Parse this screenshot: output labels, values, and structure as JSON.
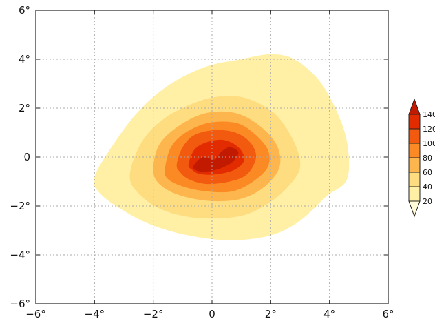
{
  "chart_data": {
    "type": "heatmap",
    "title": "",
    "xlabel": "",
    "ylabel": "",
    "xlim": [
      -6,
      6
    ],
    "ylim": [
      -6,
      6
    ],
    "x_ticks": [
      -6,
      -4,
      -2,
      0,
      2,
      4,
      6
    ],
    "y_ticks": [
      -6,
      -4,
      -2,
      0,
      2,
      4,
      6
    ],
    "x_tick_labels": [
      "−6°",
      "−4°",
      "−2°",
      "0",
      "2°",
      "4°",
      "6°"
    ],
    "y_tick_labels": [
      "−6°",
      "−4°",
      "−2°",
      "0",
      "2°",
      "4°",
      "6°"
    ],
    "grid": true,
    "contour_levels": [
      20,
      40,
      60,
      80,
      100,
      120,
      140
    ],
    "colorbar": {
      "placement": "right",
      "labels": [
        "140",
        "120",
        "100",
        "80",
        "60",
        "40",
        "20"
      ],
      "colors": [
        "#fffbd6",
        "#fff0a6",
        "#fedc80",
        "#fdb64d",
        "#fb8a24",
        "#f25a10",
        "#e32b00",
        "#c21a00"
      ]
    },
    "field": {
      "center": [
        0.2,
        0.0
      ],
      "peak_value": 145
    },
    "contours": [
      {
        "level": 20,
        "color": "#fff0a6",
        "polygon": [
          [
            -4.0,
            -0.8
          ],
          [
            -3.2,
            0.8
          ],
          [
            -2.4,
            2.0
          ],
          [
            -1.4,
            3.0
          ],
          [
            -0.2,
            3.7
          ],
          [
            1.0,
            4.0
          ],
          [
            2.0,
            4.2
          ],
          [
            2.8,
            4.0
          ],
          [
            3.6,
            3.2
          ],
          [
            4.2,
            2.0
          ],
          [
            4.6,
            0.6
          ],
          [
            4.6,
            -0.9
          ],
          [
            3.9,
            -1.6
          ],
          [
            3.0,
            -2.6
          ],
          [
            2.0,
            -3.2
          ],
          [
            0.6,
            -3.4
          ],
          [
            -0.8,
            -3.2
          ],
          [
            -2.0,
            -2.8
          ],
          [
            -3.0,
            -2.2
          ],
          [
            -3.8,
            -1.5
          ]
        ]
      },
      {
        "level": 40,
        "color": "#fedc80",
        "polygon": [
          [
            -2.8,
            -0.8
          ],
          [
            -2.4,
            0.6
          ],
          [
            -1.6,
            1.6
          ],
          [
            -0.4,
            2.3
          ],
          [
            0.6,
            2.5
          ],
          [
            1.4,
            2.3
          ],
          [
            2.2,
            1.7
          ],
          [
            2.8,
            0.6
          ],
          [
            3.0,
            -0.4
          ],
          [
            2.6,
            -1.2
          ],
          [
            1.9,
            -1.9
          ],
          [
            1.0,
            -2.4
          ],
          [
            -0.4,
            -2.5
          ],
          [
            -1.6,
            -2.2
          ],
          [
            -2.4,
            -1.6
          ]
        ]
      },
      {
        "level": 60,
        "color": "#fdb64d",
        "polygon": [
          [
            -2.0,
            -0.6
          ],
          [
            -1.8,
            0.5
          ],
          [
            -1.1,
            1.3
          ],
          [
            -0.2,
            1.8
          ],
          [
            0.8,
            1.8
          ],
          [
            1.6,
            1.3
          ],
          [
            2.2,
            0.5
          ],
          [
            2.3,
            -0.4
          ],
          [
            1.8,
            -1.2
          ],
          [
            1.0,
            -1.7
          ],
          [
            0.0,
            -1.8
          ],
          [
            -1.0,
            -1.6
          ],
          [
            -1.7,
            -1.2
          ]
        ]
      },
      {
        "level": 80,
        "color": "#fb8a24",
        "polygon": [
          [
            -1.6,
            -0.5
          ],
          [
            -1.4,
            0.4
          ],
          [
            -0.9,
            1.0
          ],
          [
            -0.1,
            1.4
          ],
          [
            0.8,
            1.4
          ],
          [
            1.4,
            1.0
          ],
          [
            1.9,
            0.3
          ],
          [
            1.9,
            -0.4
          ],
          [
            1.4,
            -1.0
          ],
          [
            0.7,
            -1.4
          ],
          [
            -0.2,
            -1.4
          ],
          [
            -1.0,
            -1.2
          ],
          [
            -1.5,
            -0.9
          ]
        ]
      },
      {
        "level": 100,
        "color": "#f25a10",
        "polygon": [
          [
            -1.2,
            -0.3
          ],
          [
            -1.0,
            0.4
          ],
          [
            -0.6,
            0.9
          ],
          [
            0.1,
            1.1
          ],
          [
            0.8,
            1.0
          ],
          [
            1.3,
            0.6
          ],
          [
            1.5,
            0.0
          ],
          [
            1.2,
            -0.7
          ],
          [
            0.6,
            -1.0
          ],
          [
            -0.2,
            -1.1
          ],
          [
            -0.8,
            -0.9
          ],
          [
            -1.1,
            -0.6
          ]
        ]
      },
      {
        "level": 120,
        "color": "#e32b00",
        "polygon": [
          [
            -0.8,
            -0.3
          ],
          [
            -0.6,
            0.3
          ],
          [
            -0.2,
            0.6
          ],
          [
            0.4,
            0.7
          ],
          [
            0.9,
            0.4
          ],
          [
            1.1,
            -0.1
          ],
          [
            0.8,
            -0.5
          ],
          [
            0.2,
            -0.7
          ],
          [
            -0.4,
            -0.7
          ],
          [
            -0.7,
            -0.5
          ]
        ]
      },
      {
        "level": 140,
        "color": "#c21a00",
        "polygon": [
          [
            -0.6,
            -0.3
          ],
          [
            -0.3,
            0.0
          ],
          [
            0.1,
            -0.1
          ],
          [
            0.3,
            0.2
          ],
          [
            0.6,
            0.4
          ],
          [
            0.9,
            0.2
          ],
          [
            0.7,
            -0.2
          ],
          [
            0.2,
            -0.5
          ],
          [
            -0.3,
            -0.6
          ],
          [
            -0.6,
            -0.5
          ]
        ]
      }
    ]
  }
}
